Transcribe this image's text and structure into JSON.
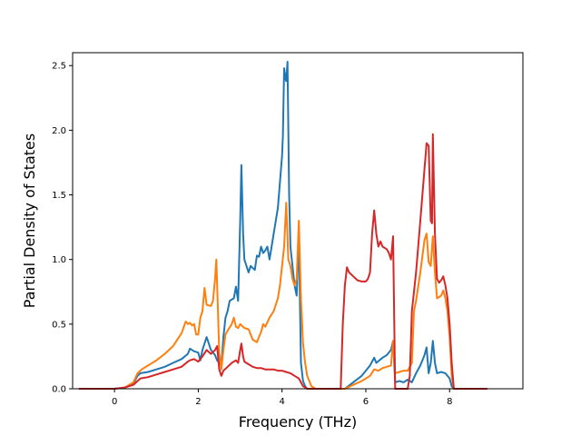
{
  "chart_data": {
    "type": "line",
    "title": "",
    "xlabel": "Frequency (THz)",
    "ylabel": "Partial Density of States",
    "xlim": [
      -1.0,
      9.75
    ],
    "ylim": [
      0,
      2.6
    ],
    "xticks": [
      0,
      2,
      4,
      6,
      8
    ],
    "xtick_labels": [
      "0",
      "2",
      "4",
      "6",
      "8"
    ],
    "yticks": [
      0.0,
      0.5,
      1.0,
      1.5,
      2.0,
      2.5
    ],
    "ytick_labels": [
      "0.0",
      "0.5",
      "1.0",
      "1.5",
      "2.0",
      "2.5"
    ],
    "grid": false,
    "legend": "none",
    "series": [
      {
        "color": "#1f77b4",
        "points": [
          [
            -0.85,
            0
          ],
          [
            0,
            0
          ],
          [
            0.25,
            0.01
          ],
          [
            0.45,
            0.04
          ],
          [
            0.55,
            0.1
          ],
          [
            0.62,
            0.12
          ],
          [
            0.8,
            0.13
          ],
          [
            1.0,
            0.15
          ],
          [
            1.2,
            0.17
          ],
          [
            1.4,
            0.2
          ],
          [
            1.6,
            0.23
          ],
          [
            1.75,
            0.27
          ],
          [
            1.8,
            0.31
          ],
          [
            1.9,
            0.29
          ],
          [
            2.0,
            0.28
          ],
          [
            2.05,
            0.22
          ],
          [
            2.1,
            0.3
          ],
          [
            2.2,
            0.4
          ],
          [
            2.25,
            0.35
          ],
          [
            2.3,
            0.3
          ],
          [
            2.4,
            0.26
          ],
          [
            2.45,
            0.22
          ],
          [
            2.5,
            0.2
          ],
          [
            2.55,
            0.18
          ],
          [
            2.6,
            0.4
          ],
          [
            2.65,
            0.55
          ],
          [
            2.7,
            0.6
          ],
          [
            2.75,
            0.68
          ],
          [
            2.85,
            0.7
          ],
          [
            2.9,
            0.79
          ],
          [
            2.95,
            0.68
          ],
          [
            3.0,
            1.3
          ],
          [
            3.03,
            1.73
          ],
          [
            3.07,
            1.2
          ],
          [
            3.1,
            1.0
          ],
          [
            3.2,
            0.9
          ],
          [
            3.25,
            0.95
          ],
          [
            3.35,
            0.92
          ],
          [
            3.4,
            1.03
          ],
          [
            3.45,
            1.02
          ],
          [
            3.5,
            1.1
          ],
          [
            3.55,
            1.05
          ],
          [
            3.6,
            1.07
          ],
          [
            3.65,
            1.1
          ],
          [
            3.7,
            1.0
          ],
          [
            3.8,
            1.2
          ],
          [
            3.9,
            1.4
          ],
          [
            3.95,
            1.6
          ],
          [
            4.0,
            1.8
          ],
          [
            4.02,
            1.95
          ],
          [
            4.05,
            2.48
          ],
          [
            4.08,
            2.4
          ],
          [
            4.1,
            2.38
          ],
          [
            4.13,
            2.53
          ],
          [
            4.17,
            1.5
          ],
          [
            4.2,
            1.1
          ],
          [
            4.25,
            0.95
          ],
          [
            4.3,
            0.8
          ],
          [
            4.35,
            0.72
          ],
          [
            4.4,
            1.2
          ],
          [
            4.45,
            0.2
          ],
          [
            4.5,
            0.06
          ],
          [
            4.55,
            0.02
          ],
          [
            4.6,
            0.0
          ],
          [
            5.5,
            0.0
          ],
          [
            5.7,
            0.05
          ],
          [
            5.9,
            0.1
          ],
          [
            6.1,
            0.18
          ],
          [
            6.2,
            0.24
          ],
          [
            6.25,
            0.2
          ],
          [
            6.4,
            0.24
          ],
          [
            6.5,
            0.26
          ],
          [
            6.6,
            0.3
          ],
          [
            6.65,
            0.37
          ],
          [
            6.7,
            0.05
          ],
          [
            6.8,
            0.06
          ],
          [
            6.9,
            0.05
          ],
          [
            7.0,
            0.07
          ],
          [
            7.1,
            0.05
          ],
          [
            7.2,
            0.12
          ],
          [
            7.3,
            0.18
          ],
          [
            7.4,
            0.26
          ],
          [
            7.45,
            0.32
          ],
          [
            7.5,
            0.12
          ],
          [
            7.55,
            0.2
          ],
          [
            7.6,
            0.37
          ],
          [
            7.65,
            0.2
          ],
          [
            7.7,
            0.12
          ],
          [
            7.8,
            0.13
          ],
          [
            7.9,
            0.12
          ],
          [
            8.0,
            0.08
          ],
          [
            8.05,
            0.02
          ],
          [
            8.1,
            0.0
          ],
          [
            8.9,
            0.0
          ]
        ]
      },
      {
        "color": "#ff7f0e",
        "points": [
          [
            -0.85,
            0
          ],
          [
            0,
            0
          ],
          [
            0.25,
            0.01
          ],
          [
            0.45,
            0.05
          ],
          [
            0.55,
            0.12
          ],
          [
            0.65,
            0.15
          ],
          [
            0.8,
            0.18
          ],
          [
            1.0,
            0.22
          ],
          [
            1.2,
            0.27
          ],
          [
            1.4,
            0.33
          ],
          [
            1.5,
            0.38
          ],
          [
            1.6,
            0.43
          ],
          [
            1.7,
            0.52
          ],
          [
            1.75,
            0.5
          ],
          [
            1.8,
            0.51
          ],
          [
            1.85,
            0.49
          ],
          [
            1.9,
            0.5
          ],
          [
            1.95,
            0.42
          ],
          [
            2.0,
            0.42
          ],
          [
            2.05,
            0.55
          ],
          [
            2.1,
            0.6
          ],
          [
            2.15,
            0.78
          ],
          [
            2.2,
            0.65
          ],
          [
            2.3,
            0.64
          ],
          [
            2.35,
            0.68
          ],
          [
            2.4,
            0.85
          ],
          [
            2.43,
            1.0
          ],
          [
            2.47,
            0.6
          ],
          [
            2.5,
            0.28
          ],
          [
            2.55,
            0.15
          ],
          [
            2.6,
            0.3
          ],
          [
            2.65,
            0.42
          ],
          [
            2.7,
            0.45
          ],
          [
            2.8,
            0.5
          ],
          [
            2.85,
            0.55
          ],
          [
            2.9,
            0.48
          ],
          [
            2.95,
            0.47
          ],
          [
            3.0,
            0.5
          ],
          [
            3.1,
            0.47
          ],
          [
            3.2,
            0.46
          ],
          [
            3.3,
            0.38
          ],
          [
            3.4,
            0.36
          ],
          [
            3.5,
            0.44
          ],
          [
            3.55,
            0.5
          ],
          [
            3.6,
            0.48
          ],
          [
            3.7,
            0.55
          ],
          [
            3.8,
            0.6
          ],
          [
            3.9,
            0.7
          ],
          [
            3.95,
            0.8
          ],
          [
            4.0,
            0.95
          ],
          [
            4.05,
            1.1
          ],
          [
            4.1,
            1.44
          ],
          [
            4.15,
            1.0
          ],
          [
            4.2,
            0.95
          ],
          [
            4.25,
            0.85
          ],
          [
            4.3,
            0.8
          ],
          [
            4.35,
            0.85
          ],
          [
            4.4,
            1.3
          ],
          [
            4.45,
            0.7
          ],
          [
            4.5,
            0.35
          ],
          [
            4.55,
            0.2
          ],
          [
            4.6,
            0.1
          ],
          [
            4.7,
            0.02
          ],
          [
            4.8,
            0.0
          ],
          [
            5.5,
            0.0
          ],
          [
            5.7,
            0.03
          ],
          [
            5.9,
            0.06
          ],
          [
            6.1,
            0.1
          ],
          [
            6.2,
            0.15
          ],
          [
            6.3,
            0.14
          ],
          [
            6.4,
            0.16
          ],
          [
            6.5,
            0.17
          ],
          [
            6.6,
            0.18
          ],
          [
            6.65,
            0.37
          ],
          [
            6.7,
            0.12
          ],
          [
            6.8,
            0.13
          ],
          [
            6.9,
            0.14
          ],
          [
            7.0,
            0.14
          ],
          [
            7.1,
            0.2
          ],
          [
            7.15,
            0.6
          ],
          [
            7.2,
            0.68
          ],
          [
            7.3,
            0.9
          ],
          [
            7.4,
            1.15
          ],
          [
            7.45,
            1.2
          ],
          [
            7.5,
            0.98
          ],
          [
            7.55,
            0.95
          ],
          [
            7.6,
            1.18
          ],
          [
            7.65,
            0.9
          ],
          [
            7.7,
            0.7
          ],
          [
            7.8,
            0.72
          ],
          [
            7.85,
            0.76
          ],
          [
            7.9,
            0.7
          ],
          [
            7.95,
            0.6
          ],
          [
            8.0,
            0.4
          ],
          [
            8.05,
            0.1
          ],
          [
            8.1,
            0.0
          ],
          [
            8.9,
            0.0
          ]
        ]
      },
      {
        "color": "#d62728",
        "points": [
          [
            -0.85,
            0
          ],
          [
            0,
            0
          ],
          [
            0.25,
            0.01
          ],
          [
            0.45,
            0.03
          ],
          [
            0.55,
            0.06
          ],
          [
            0.62,
            0.08
          ],
          [
            0.8,
            0.09
          ],
          [
            1.0,
            0.11
          ],
          [
            1.2,
            0.13
          ],
          [
            1.4,
            0.15
          ],
          [
            1.6,
            0.17
          ],
          [
            1.75,
            0.21
          ],
          [
            1.8,
            0.22
          ],
          [
            1.9,
            0.23
          ],
          [
            2.0,
            0.21
          ],
          [
            2.1,
            0.25
          ],
          [
            2.2,
            0.3
          ],
          [
            2.3,
            0.27
          ],
          [
            2.4,
            0.3
          ],
          [
            2.45,
            0.33
          ],
          [
            2.5,
            0.15
          ],
          [
            2.55,
            0.1
          ],
          [
            2.6,
            0.14
          ],
          [
            2.7,
            0.17
          ],
          [
            2.8,
            0.2
          ],
          [
            2.9,
            0.22
          ],
          [
            2.95,
            0.2
          ],
          [
            3.0,
            0.3
          ],
          [
            3.03,
            0.35
          ],
          [
            3.07,
            0.25
          ],
          [
            3.1,
            0.21
          ],
          [
            3.2,
            0.19
          ],
          [
            3.3,
            0.17
          ],
          [
            3.4,
            0.16
          ],
          [
            3.5,
            0.16
          ],
          [
            3.6,
            0.15
          ],
          [
            3.7,
            0.15
          ],
          [
            3.8,
            0.15
          ],
          [
            3.9,
            0.14
          ],
          [
            4.0,
            0.14
          ],
          [
            4.1,
            0.13
          ],
          [
            4.2,
            0.12
          ],
          [
            4.3,
            0.1
          ],
          [
            4.4,
            0.08
          ],
          [
            4.45,
            0.05
          ],
          [
            4.5,
            0.02
          ],
          [
            4.6,
            0.0
          ],
          [
            5.4,
            0.0
          ],
          [
            5.45,
            0.5
          ],
          [
            5.5,
            0.8
          ],
          [
            5.55,
            0.94
          ],
          [
            5.6,
            0.9
          ],
          [
            5.7,
            0.87
          ],
          [
            5.8,
            0.84
          ],
          [
            5.9,
            0.83
          ],
          [
            6.0,
            0.83
          ],
          [
            6.05,
            0.85
          ],
          [
            6.1,
            0.9
          ],
          [
            6.15,
            1.2
          ],
          [
            6.2,
            1.38
          ],
          [
            6.25,
            1.2
          ],
          [
            6.3,
            1.1
          ],
          [
            6.35,
            1.14
          ],
          [
            6.4,
            1.1
          ],
          [
            6.5,
            1.08
          ],
          [
            6.55,
            1.05
          ],
          [
            6.6,
            1.0
          ],
          [
            6.65,
            1.18
          ],
          [
            6.7,
            0.0
          ],
          [
            6.75,
            0.0
          ],
          [
            7.0,
            0.0
          ],
          [
            7.05,
            0.1
          ],
          [
            7.1,
            0.6
          ],
          [
            7.2,
            0.9
          ],
          [
            7.3,
            1.3
          ],
          [
            7.4,
            1.7
          ],
          [
            7.45,
            1.9
          ],
          [
            7.5,
            1.88
          ],
          [
            7.55,
            1.3
          ],
          [
            7.58,
            1.28
          ],
          [
            7.6,
            1.97
          ],
          [
            7.65,
            1.2
          ],
          [
            7.7,
            0.85
          ],
          [
            7.75,
            0.82
          ],
          [
            7.8,
            0.84
          ],
          [
            7.85,
            0.87
          ],
          [
            7.9,
            0.8
          ],
          [
            7.95,
            0.7
          ],
          [
            8.0,
            0.5
          ],
          [
            8.05,
            0.2
          ],
          [
            8.1,
            0.0
          ],
          [
            8.9,
            0.0
          ]
        ]
      }
    ]
  }
}
